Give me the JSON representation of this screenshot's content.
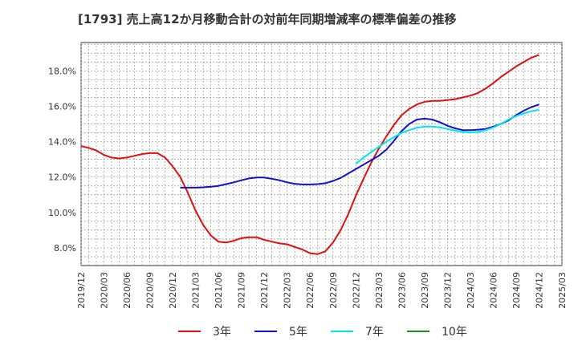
{
  "chart_data": {
    "type": "line",
    "title": "[1793]  売上高12か月移動合計の対前年同期増減率の標準偏差の推移",
    "xlabel": "",
    "ylabel": "",
    "x_ticks": [
      "2019/12",
      "2020/03",
      "2020/06",
      "2020/09",
      "2020/12",
      "2021/03",
      "2021/06",
      "2021/09",
      "2021/12",
      "2022/03",
      "2022/06",
      "2022/09",
      "2022/12",
      "2023/03",
      "2023/06",
      "2023/09",
      "2023/12",
      "2024/03",
      "2024/06",
      "2024/09",
      "2024/12",
      "2025/03"
    ],
    "y_ticks": [
      "8.0%",
      "10.0%",
      "12.0%",
      "14.0%",
      "16.0%",
      "18.0%"
    ],
    "ylim": [
      7.0,
      19.6
    ],
    "grid": true,
    "legend_position": "bottom",
    "series": [
      {
        "name": "3年",
        "color": "#dd1111",
        "points": [
          [
            "2019/12",
            13.75
          ],
          [
            "2020/01",
            13.65
          ],
          [
            "2020/02",
            13.5
          ],
          [
            "2020/03",
            13.25
          ],
          [
            "2020/04",
            13.1
          ],
          [
            "2020/05",
            13.05
          ],
          [
            "2020/06",
            13.1
          ],
          [
            "2020/07",
            13.2
          ],
          [
            "2020/08",
            13.3
          ],
          [
            "2020/09",
            13.35
          ],
          [
            "2020/10",
            13.35
          ],
          [
            "2020/11",
            13.1
          ],
          [
            "2020/12",
            12.6
          ],
          [
            "2021/01",
            12.0
          ],
          [
            "2021/02",
            11.1
          ],
          [
            "2021/03",
            10.1
          ],
          [
            "2021/04",
            9.3
          ],
          [
            "2021/05",
            8.7
          ],
          [
            "2021/06",
            8.35
          ],
          [
            "2021/07",
            8.3
          ],
          [
            "2021/08",
            8.4
          ],
          [
            "2021/09",
            8.55
          ],
          [
            "2021/10",
            8.6
          ],
          [
            "2021/11",
            8.6
          ],
          [
            "2021/12",
            8.45
          ],
          [
            "2022/01",
            8.35
          ],
          [
            "2022/02",
            8.25
          ],
          [
            "2022/03",
            8.2
          ],
          [
            "2022/04",
            8.05
          ],
          [
            "2022/05",
            7.9
          ],
          [
            "2022/06",
            7.7
          ],
          [
            "2022/07",
            7.65
          ],
          [
            "2022/08",
            7.8
          ],
          [
            "2022/09",
            8.3
          ],
          [
            "2022/10",
            9.0
          ],
          [
            "2022/11",
            9.9
          ],
          [
            "2022/12",
            10.95
          ],
          [
            "2023/01",
            11.9
          ],
          [
            "2023/02",
            12.8
          ],
          [
            "2023/03",
            13.6
          ],
          [
            "2023/04",
            14.3
          ],
          [
            "2023/05",
            14.95
          ],
          [
            "2023/06",
            15.5
          ],
          [
            "2023/07",
            15.85
          ],
          [
            "2023/08",
            16.1
          ],
          [
            "2023/09",
            16.25
          ],
          [
            "2023/10",
            16.3
          ],
          [
            "2023/11",
            16.3
          ],
          [
            "2023/12",
            16.35
          ],
          [
            "2024/01",
            16.4
          ],
          [
            "2024/02",
            16.5
          ],
          [
            "2024/03",
            16.6
          ],
          [
            "2024/04",
            16.75
          ],
          [
            "2024/05",
            17.0
          ],
          [
            "2024/06",
            17.3
          ],
          [
            "2024/07",
            17.65
          ],
          [
            "2024/08",
            17.95
          ],
          [
            "2024/09",
            18.25
          ],
          [
            "2024/10",
            18.5
          ],
          [
            "2024/11",
            18.75
          ],
          [
            "2024/12",
            18.9
          ]
        ]
      },
      {
        "name": "5年",
        "color": "#1111cc",
        "points": [
          [
            "2021/01",
            11.4
          ],
          [
            "2021/02",
            11.4
          ],
          [
            "2021/03",
            11.4
          ],
          [
            "2021/04",
            11.42
          ],
          [
            "2021/05",
            11.45
          ],
          [
            "2021/06",
            11.5
          ],
          [
            "2021/07",
            11.6
          ],
          [
            "2021/08",
            11.7
          ],
          [
            "2021/09",
            11.82
          ],
          [
            "2021/10",
            11.92
          ],
          [
            "2021/11",
            11.97
          ],
          [
            "2021/12",
            11.97
          ],
          [
            "2022/01",
            11.9
          ],
          [
            "2022/02",
            11.82
          ],
          [
            "2022/03",
            11.7
          ],
          [
            "2022/04",
            11.62
          ],
          [
            "2022/05",
            11.58
          ],
          [
            "2022/06",
            11.58
          ],
          [
            "2022/07",
            11.6
          ],
          [
            "2022/08",
            11.65
          ],
          [
            "2022/09",
            11.78
          ],
          [
            "2022/10",
            11.95
          ],
          [
            "2022/11",
            12.2
          ],
          [
            "2022/12",
            12.45
          ],
          [
            "2023/01",
            12.7
          ],
          [
            "2023/02",
            12.95
          ],
          [
            "2023/03",
            13.2
          ],
          [
            "2023/04",
            13.55
          ],
          [
            "2023/05",
            14.05
          ],
          [
            "2023/06",
            14.6
          ],
          [
            "2023/07",
            15.0
          ],
          [
            "2023/08",
            15.25
          ],
          [
            "2023/09",
            15.3
          ],
          [
            "2023/10",
            15.25
          ],
          [
            "2023/11",
            15.1
          ],
          [
            "2023/12",
            14.9
          ],
          [
            "2024/01",
            14.75
          ],
          [
            "2024/02",
            14.65
          ],
          [
            "2024/03",
            14.65
          ],
          [
            "2024/04",
            14.68
          ],
          [
            "2024/05",
            14.72
          ],
          [
            "2024/06",
            14.85
          ],
          [
            "2024/07",
            15.0
          ],
          [
            "2024/08",
            15.2
          ],
          [
            "2024/09",
            15.5
          ],
          [
            "2024/10",
            15.75
          ],
          [
            "2024/11",
            15.95
          ],
          [
            "2024/12",
            16.1
          ]
        ]
      },
      {
        "name": "7年",
        "color": "#00e5ee",
        "points": [
          [
            "2022/12",
            12.75
          ],
          [
            "2023/01",
            13.1
          ],
          [
            "2023/02",
            13.4
          ],
          [
            "2023/03",
            13.7
          ],
          [
            "2023/04",
            14.0
          ],
          [
            "2023/05",
            14.25
          ],
          [
            "2023/06",
            14.5
          ],
          [
            "2023/07",
            14.65
          ],
          [
            "2023/08",
            14.78
          ],
          [
            "2023/09",
            14.85
          ],
          [
            "2023/10",
            14.85
          ],
          [
            "2023/11",
            14.8
          ],
          [
            "2023/12",
            14.72
          ],
          [
            "2024/01",
            14.62
          ],
          [
            "2024/02",
            14.55
          ],
          [
            "2024/03",
            14.52
          ],
          [
            "2024/04",
            14.55
          ],
          [
            "2024/05",
            14.65
          ],
          [
            "2024/06",
            14.8
          ],
          [
            "2024/07",
            15.0
          ],
          [
            "2024/08",
            15.25
          ],
          [
            "2024/09",
            15.45
          ],
          [
            "2024/10",
            15.6
          ],
          [
            "2024/11",
            15.72
          ],
          [
            "2024/12",
            15.8
          ]
        ]
      },
      {
        "name": "10年",
        "color": "#228b22",
        "points": []
      }
    ]
  }
}
